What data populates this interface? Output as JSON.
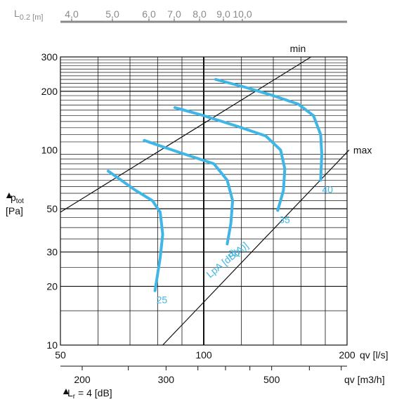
{
  "chart_data": {
    "type": "line",
    "title": "",
    "x_axis": {
      "label": "qv [l/s]",
      "scale": "log",
      "range": [
        50,
        200
      ],
      "ticks": [
        "50",
        "100",
        "200"
      ]
    },
    "x2_axis": {
      "label": "qv [m3/h]",
      "ticks": [
        "200",
        "300",
        "500"
      ]
    },
    "y_axis": {
      "label_main": "p",
      "label_sub": "tot",
      "label_unit": "[Pa]",
      "label_symbol": "▲",
      "scale": "log",
      "range": [
        10,
        300
      ],
      "ticks": [
        "10",
        "20",
        "30",
        "50",
        "100",
        "200",
        "300"
      ]
    },
    "top_scale": {
      "label_main": "L",
      "label_sub": "0.2 [m]",
      "ticks": [
        "4,0",
        "5,0",
        "6,0",
        "7,0",
        "8,0",
        "9,0",
        "10,0"
      ]
    },
    "bottom_note": {
      "symbol": "▲",
      "main": "L",
      "sub": "r",
      "rest": " = 4 [dB]"
    },
    "boundary_lines": [
      {
        "name": "min",
        "points": [
          [
            50,
            48
          ],
          [
            168,
            300
          ]
        ]
      },
      {
        "name": "max",
        "points": [
          [
            82,
            10
          ],
          [
            202,
            100
          ]
        ]
      }
    ],
    "series_label": "LpA [dB(A)]",
    "series": [
      {
        "name": "25",
        "points": [
          [
            63,
            78
          ],
          [
            72,
            62
          ],
          [
            78,
            55
          ],
          [
            81,
            48
          ],
          [
            82,
            37
          ],
          [
            81,
            28
          ],
          [
            79,
            19
          ]
        ]
      },
      {
        "name": "30",
        "points": [
          [
            75,
            112
          ],
          [
            88,
            98
          ],
          [
            105,
            85
          ],
          [
            112,
            70
          ],
          [
            115,
            55
          ],
          [
            114,
            42
          ],
          [
            112,
            33
          ]
        ]
      },
      {
        "name": "35",
        "points": [
          [
            87,
            165
          ],
          [
            100,
            150
          ],
          [
            118,
            132
          ],
          [
            135,
            118
          ],
          [
            145,
            100
          ],
          [
            148,
            80
          ],
          [
            147,
            62
          ],
          [
            143,
            49
          ]
        ]
      },
      {
        "name": "40",
        "points": [
          [
            106,
            230
          ],
          [
            122,
            210
          ],
          [
            140,
            190
          ],
          [
            158,
            172
          ],
          [
            170,
            150
          ],
          [
            176,
            120
          ],
          [
            177,
            95
          ],
          [
            176,
            70
          ]
        ]
      }
    ],
    "grid": true
  }
}
